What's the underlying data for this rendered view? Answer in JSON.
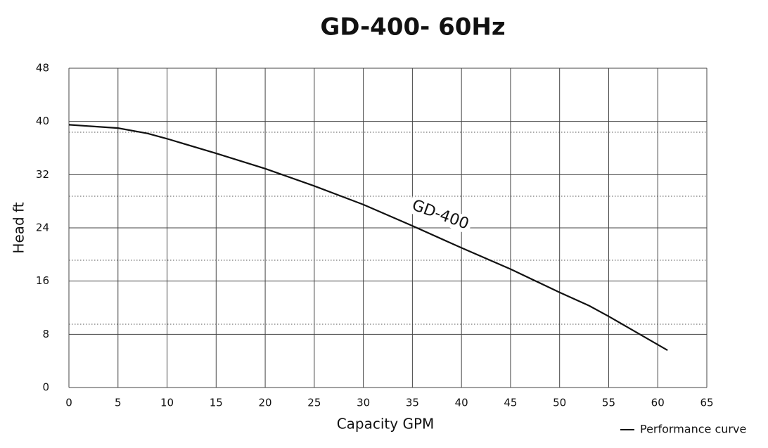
{
  "chart_data": {
    "type": "line",
    "title": "GD-400- 60Hz",
    "x_label": "Capacity GPM",
    "y_label": "Head ft",
    "x": [
      0,
      5,
      8,
      10,
      15,
      20,
      25,
      30,
      35,
      40,
      45,
      50,
      53,
      55,
      61
    ],
    "series": [
      {
        "name": "Performance curve",
        "color": "#111111",
        "values": [
          39.5,
          39,
          38.2,
          37.4,
          35.2,
          32.9,
          30.3,
          27.5,
          24.3,
          21,
          17.8,
          14.3,
          12.3,
          10.7,
          5.6
        ]
      }
    ],
    "annotation": "GD-400",
    "xlim": [
      0,
      65
    ],
    "xticks": [
      0,
      5,
      10,
      15,
      20,
      25,
      30,
      35,
      40,
      45,
      50,
      55,
      60,
      65
    ],
    "ylim": [
      0,
      48
    ],
    "yticks": [
      0,
      8,
      16,
      24,
      32,
      40,
      48
    ],
    "grid": true,
    "legend": "bottom-right"
  }
}
